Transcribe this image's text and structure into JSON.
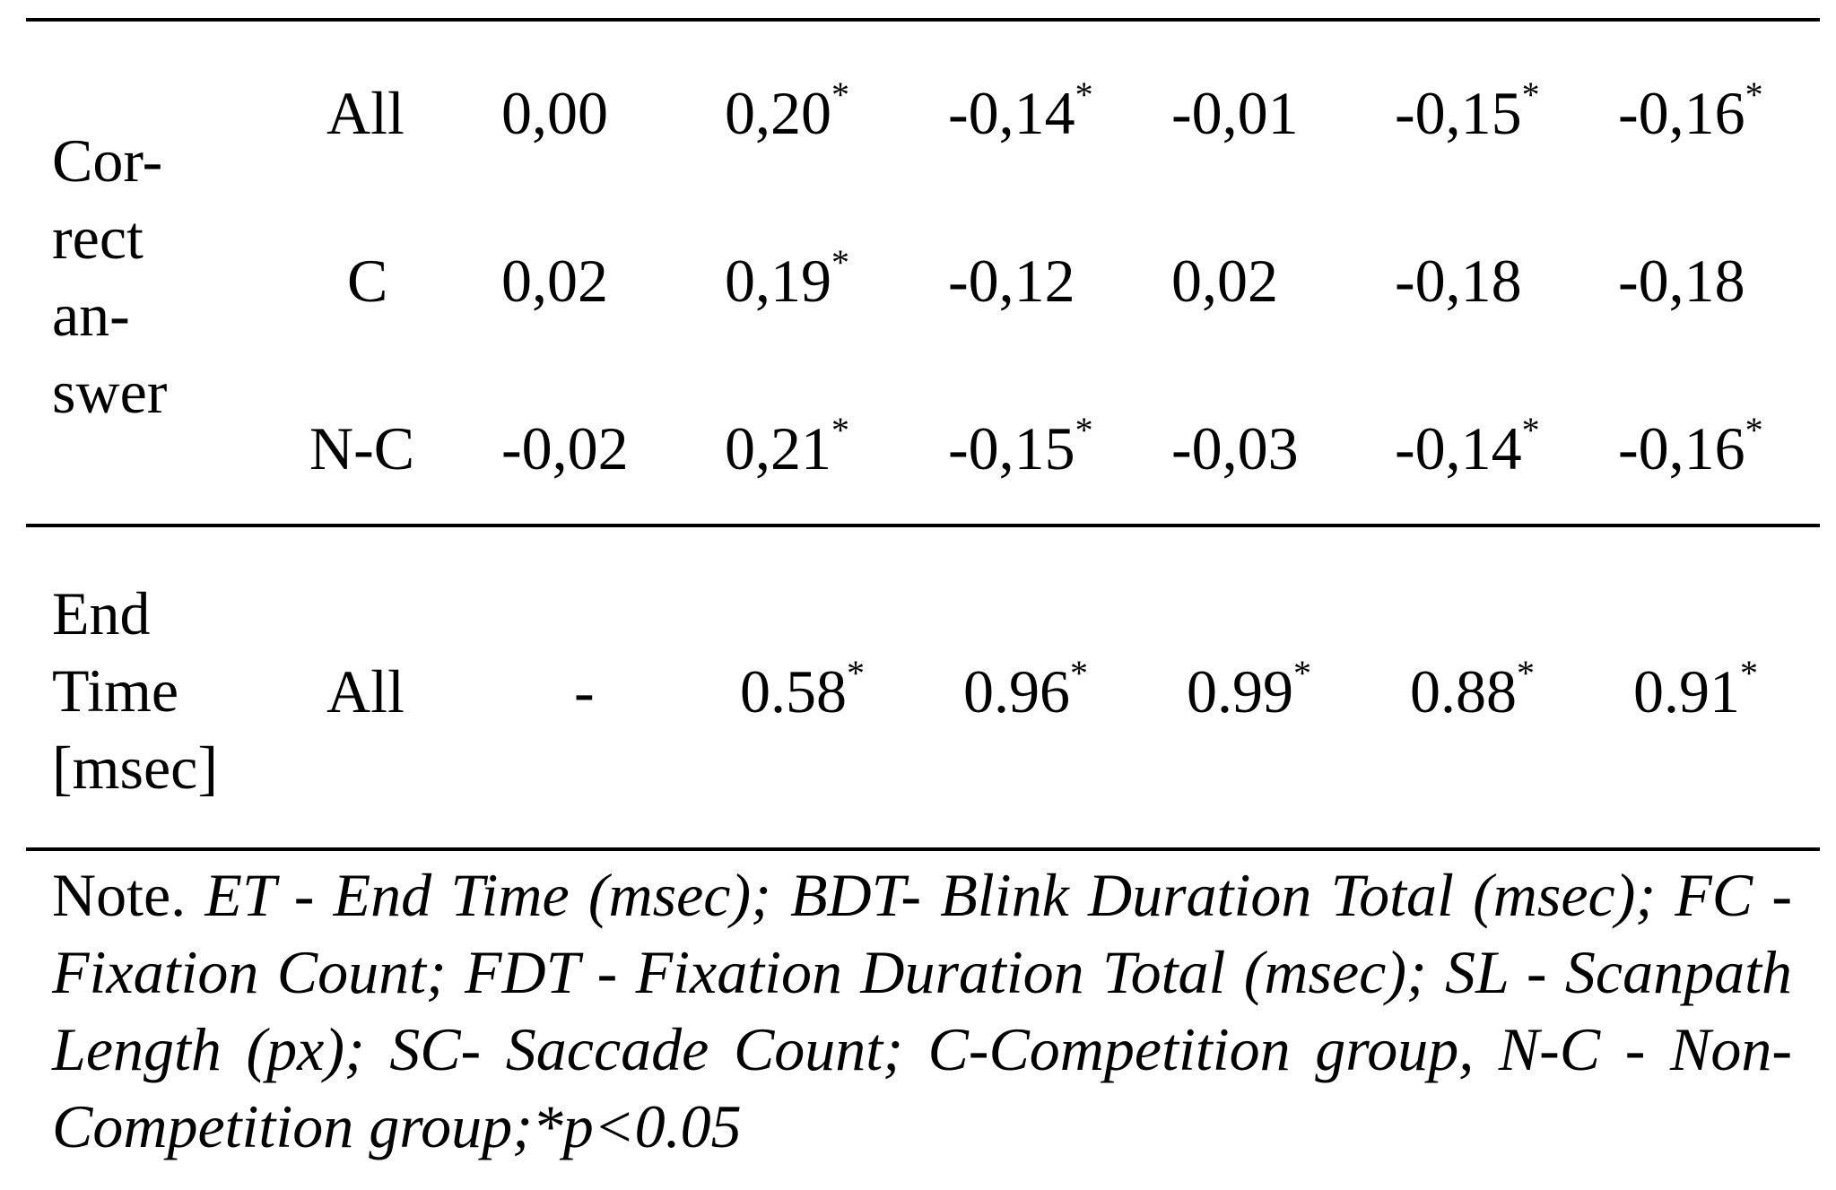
{
  "table": {
    "groups": [
      {
        "label_lines": [
          "Cor-",
          "rect",
          "an-",
          "swer"
        ],
        "rows": [
          {
            "sub": "All",
            "cells": [
              {
                "v": "0,00",
                "sig": false
              },
              {
                "v": "0,20",
                "sig": true
              },
              {
                "v": "-0,14",
                "sig": true
              },
              {
                "v": "-0,01",
                "sig": false
              },
              {
                "v": "-0,15",
                "sig": true
              },
              {
                "v": "-0,16",
                "sig": true
              }
            ]
          },
          {
            "sub": "C",
            "cells": [
              {
                "v": "0,02",
                "sig": false
              },
              {
                "v": "0,19",
                "sig": true
              },
              {
                "v": "-0,12",
                "sig": false
              },
              {
                "v": "0,02",
                "sig": false
              },
              {
                "v": "-0,18",
                "sig": false
              },
              {
                "v": "-0,18",
                "sig": false
              }
            ]
          },
          {
            "sub": "N-C",
            "cells": [
              {
                "v": "-0,02",
                "sig": false
              },
              {
                "v": "0,21",
                "sig": true
              },
              {
                "v": "-0,15",
                "sig": true
              },
              {
                "v": "-0,03",
                "sig": false
              },
              {
                "v": "-0,14",
                "sig": true
              },
              {
                "v": "-0,16",
                "sig": true
              }
            ]
          }
        ]
      },
      {
        "label_lines": [
          "End",
          "Time",
          "[msec]"
        ],
        "rows": [
          {
            "sub": "All",
            "cells": [
              {
                "v": "-",
                "sig": false
              },
              {
                "v": "0.58",
                "sig": true
              },
              {
                "v": "0.96",
                "sig": true
              },
              {
                "v": "0.99",
                "sig": true
              },
              {
                "v": "0.88",
                "sig": true
              },
              {
                "v": "0.91",
                "sig": true
              }
            ]
          }
        ]
      }
    ],
    "sig_marker": "*"
  },
  "note": {
    "lead": "Note.",
    "body": "ET - End Time (msec); BDT- Blink Duration Total (msec); FC -Fixation Count; FDT - Fixation Duration Total (msec); SL - Scanpath Length (px); SC- Saccade Count; C-Competition group, N-C - Non-Competition group;*p<0.05"
  }
}
